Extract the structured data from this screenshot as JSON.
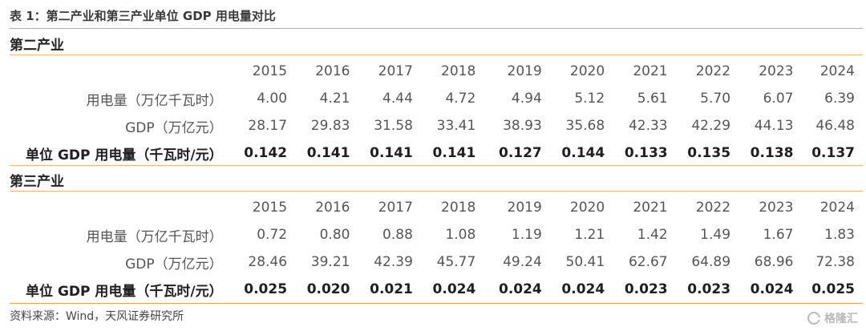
{
  "title": "表 1：第二产业和第三产业单位 GDP 用电量对比",
  "sections": [
    {
      "name": "第二产业",
      "years": [
        "2015",
        "2016",
        "2017",
        "2018",
        "2019",
        "2020",
        "2021",
        "2022",
        "2023",
        "2024"
      ],
      "rows": [
        {
          "label": "用电量（万亿千瓦时）",
          "values": [
            "4.00",
            "4.21",
            "4.44",
            "4.72",
            "4.94",
            "5.12",
            "5.61",
            "5.70",
            "6.07",
            "6.39"
          ]
        },
        {
          "label": "GDP（万亿元）",
          "values": [
            "28.17",
            "29.83",
            "31.58",
            "33.41",
            "38.93",
            "35.68",
            "42.33",
            "42.29",
            "44.13",
            "46.48"
          ]
        },
        {
          "label": "单位 GDP 用电量（千瓦时/元）",
          "values": [
            "0.142",
            "0.141",
            "0.141",
            "0.141",
            "0.127",
            "0.144",
            "0.133",
            "0.135",
            "0.138",
            "0.137"
          ]
        }
      ]
    },
    {
      "name": "第三产业",
      "years": [
        "2015",
        "2016",
        "2017",
        "2018",
        "2019",
        "2020",
        "2021",
        "2022",
        "2023",
        "2024"
      ],
      "rows": [
        {
          "label": "用电量（万亿千瓦时）",
          "values": [
            "0.72",
            "0.80",
            "0.88",
            "1.08",
            "1.19",
            "1.21",
            "1.42",
            "1.49",
            "1.67",
            "1.83"
          ]
        },
        {
          "label": "GDP（万亿元）",
          "values": [
            "28.46",
            "39.21",
            "42.39",
            "45.77",
            "49.24",
            "50.41",
            "62.67",
            "64.89",
            "68.96",
            "72.38"
          ]
        },
        {
          "label": "单位 GDP 用电量（千瓦时/元）",
          "values": [
            "0.025",
            "0.020",
            "0.021",
            "0.024",
            "0.024",
            "0.024",
            "0.023",
            "0.023",
            "0.024",
            "0.025"
          ]
        }
      ]
    }
  ],
  "source": "资料来源：Wind，天风证券研究所",
  "watermark": "格隆汇",
  "colors": {
    "rule": "#f0a24e"
  }
}
